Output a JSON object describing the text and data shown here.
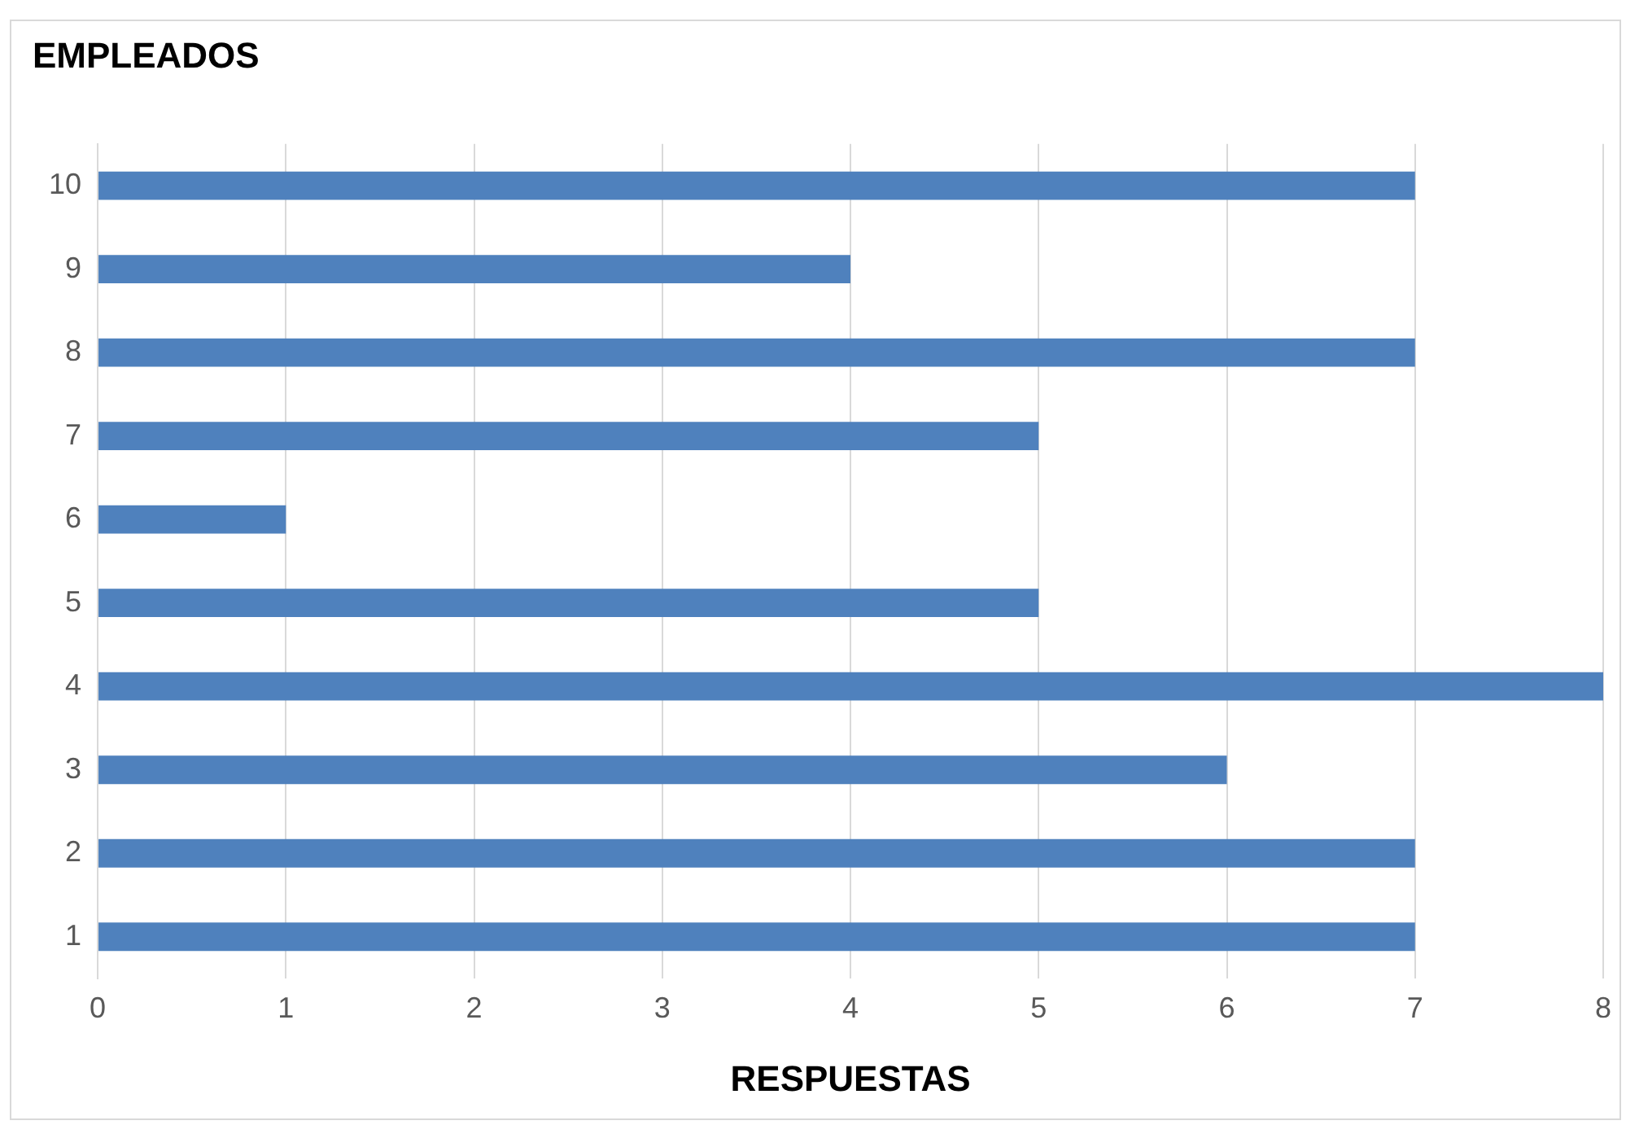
{
  "chart_data": {
    "type": "bar",
    "orientation": "horizontal",
    "title": "EMPLEADOS",
    "xlabel": "RESPUESTAS",
    "categories": [
      "10",
      "9",
      "8",
      "7",
      "6",
      "5",
      "4",
      "3",
      "2",
      "1"
    ],
    "values": [
      7,
      4,
      7,
      5,
      1,
      5,
      8,
      6,
      7,
      7
    ],
    "color": "#4f81bd",
    "xlim": [
      0,
      8
    ],
    "xticks": [
      0,
      1,
      2,
      3,
      4,
      5,
      6,
      7,
      8
    ],
    "grid": "x",
    "legend": false
  }
}
